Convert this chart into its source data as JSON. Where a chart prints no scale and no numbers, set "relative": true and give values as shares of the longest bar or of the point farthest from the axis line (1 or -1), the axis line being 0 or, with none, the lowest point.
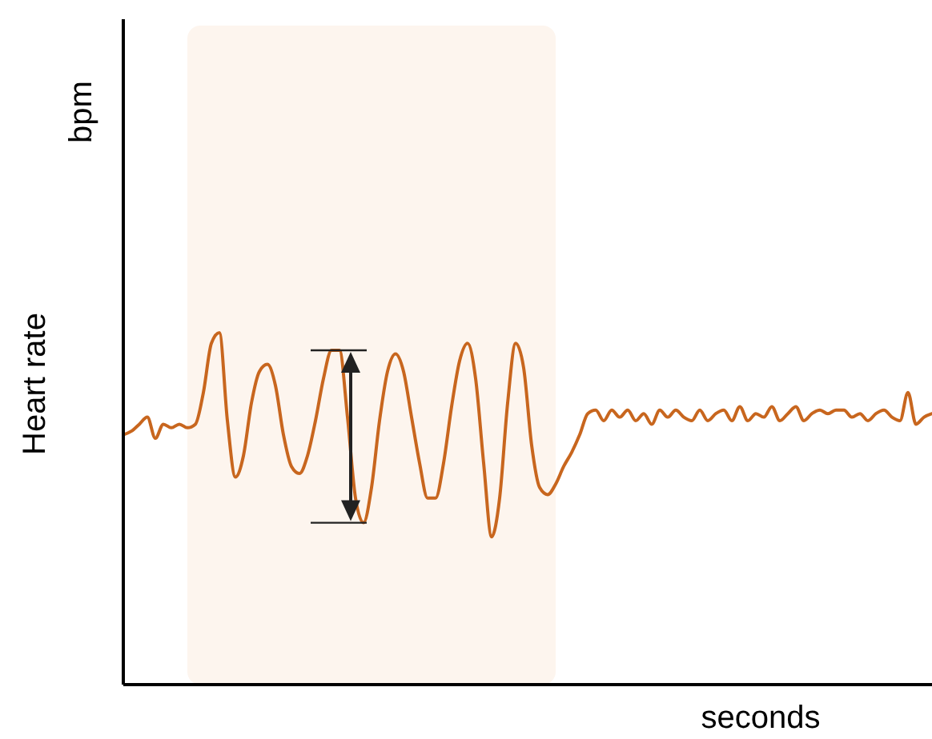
{
  "chart_data": {
    "type": "line",
    "relative": true,
    "xlabel": "seconds",
    "ylabel": "Heart rate",
    "annotations": [
      "bpm"
    ],
    "categories": [
      null,
      null,
      null,
      null,
      null,
      null,
      null,
      null,
      null,
      null,
      null,
      null,
      null,
      null,
      null,
      null,
      null,
      null,
      null,
      null,
      null,
      null,
      null,
      null,
      null,
      null,
      null,
      null,
      null,
      null,
      null,
      null,
      null,
      null,
      null,
      null,
      null,
      null,
      null,
      null,
      null,
      null,
      null,
      null,
      null,
      null,
      null,
      null,
      null,
      null,
      null,
      null,
      null,
      null,
      null,
      null,
      null,
      null,
      null,
      null,
      null,
      null,
      null,
      null,
      null,
      null,
      null,
      null,
      null,
      null,
      null,
      null,
      null,
      null,
      null,
      null,
      null,
      null,
      null,
      null,
      null,
      null,
      null,
      null,
      null,
      null,
      null,
      null,
      null,
      null,
      null,
      null,
      null,
      null,
      null,
      null,
      null,
      null,
      null,
      null,
      null,
      null
    ],
    "series": [
      {
        "color": "#c8661e",
        "values": [
          0.71,
          0.72,
          0.74,
          0.76,
          0.7,
          0.74,
          0.73,
          0.74,
          0.73,
          0.74,
          0.83,
          0.97,
          1,
          0.75,
          0.59,
          0.65,
          0.8,
          0.89,
          0.91,
          0.85,
          0.71,
          0.62,
          0.6,
          0.65,
          0.75,
          0.87,
          0.95,
          0.95,
          0.76,
          0.53,
          0.46,
          0.56,
          0.75,
          0.89,
          0.94,
          0.89,
          0.76,
          0.63,
          0.53,
          0.53,
          0.63,
          0.79,
          0.92,
          0.97,
          0.87,
          0.63,
          0.42,
          0.53,
          0.8,
          0.97,
          0.9,
          0.68,
          0.56,
          0.54,
          0.57,
          0.62,
          0.66,
          0.71,
          0.77,
          0.78,
          0.75,
          0.78,
          0.76,
          0.78,
          0.75,
          0.77,
          0.74,
          0.78,
          0.76,
          0.78,
          0.76,
          0.75,
          0.78,
          0.75,
          0.77,
          0.78,
          0.75,
          0.79,
          0.75,
          0.77,
          0.76,
          0.79,
          0.75,
          0.77,
          0.79,
          0.75,
          0.77,
          0.78,
          0.77,
          0.78,
          0.78,
          0.76,
          0.77,
          0.75,
          0.77,
          0.78,
          0.76,
          0.75,
          0.83,
          0.74,
          0.76,
          0.77
        ]
      }
    ]
  }
}
